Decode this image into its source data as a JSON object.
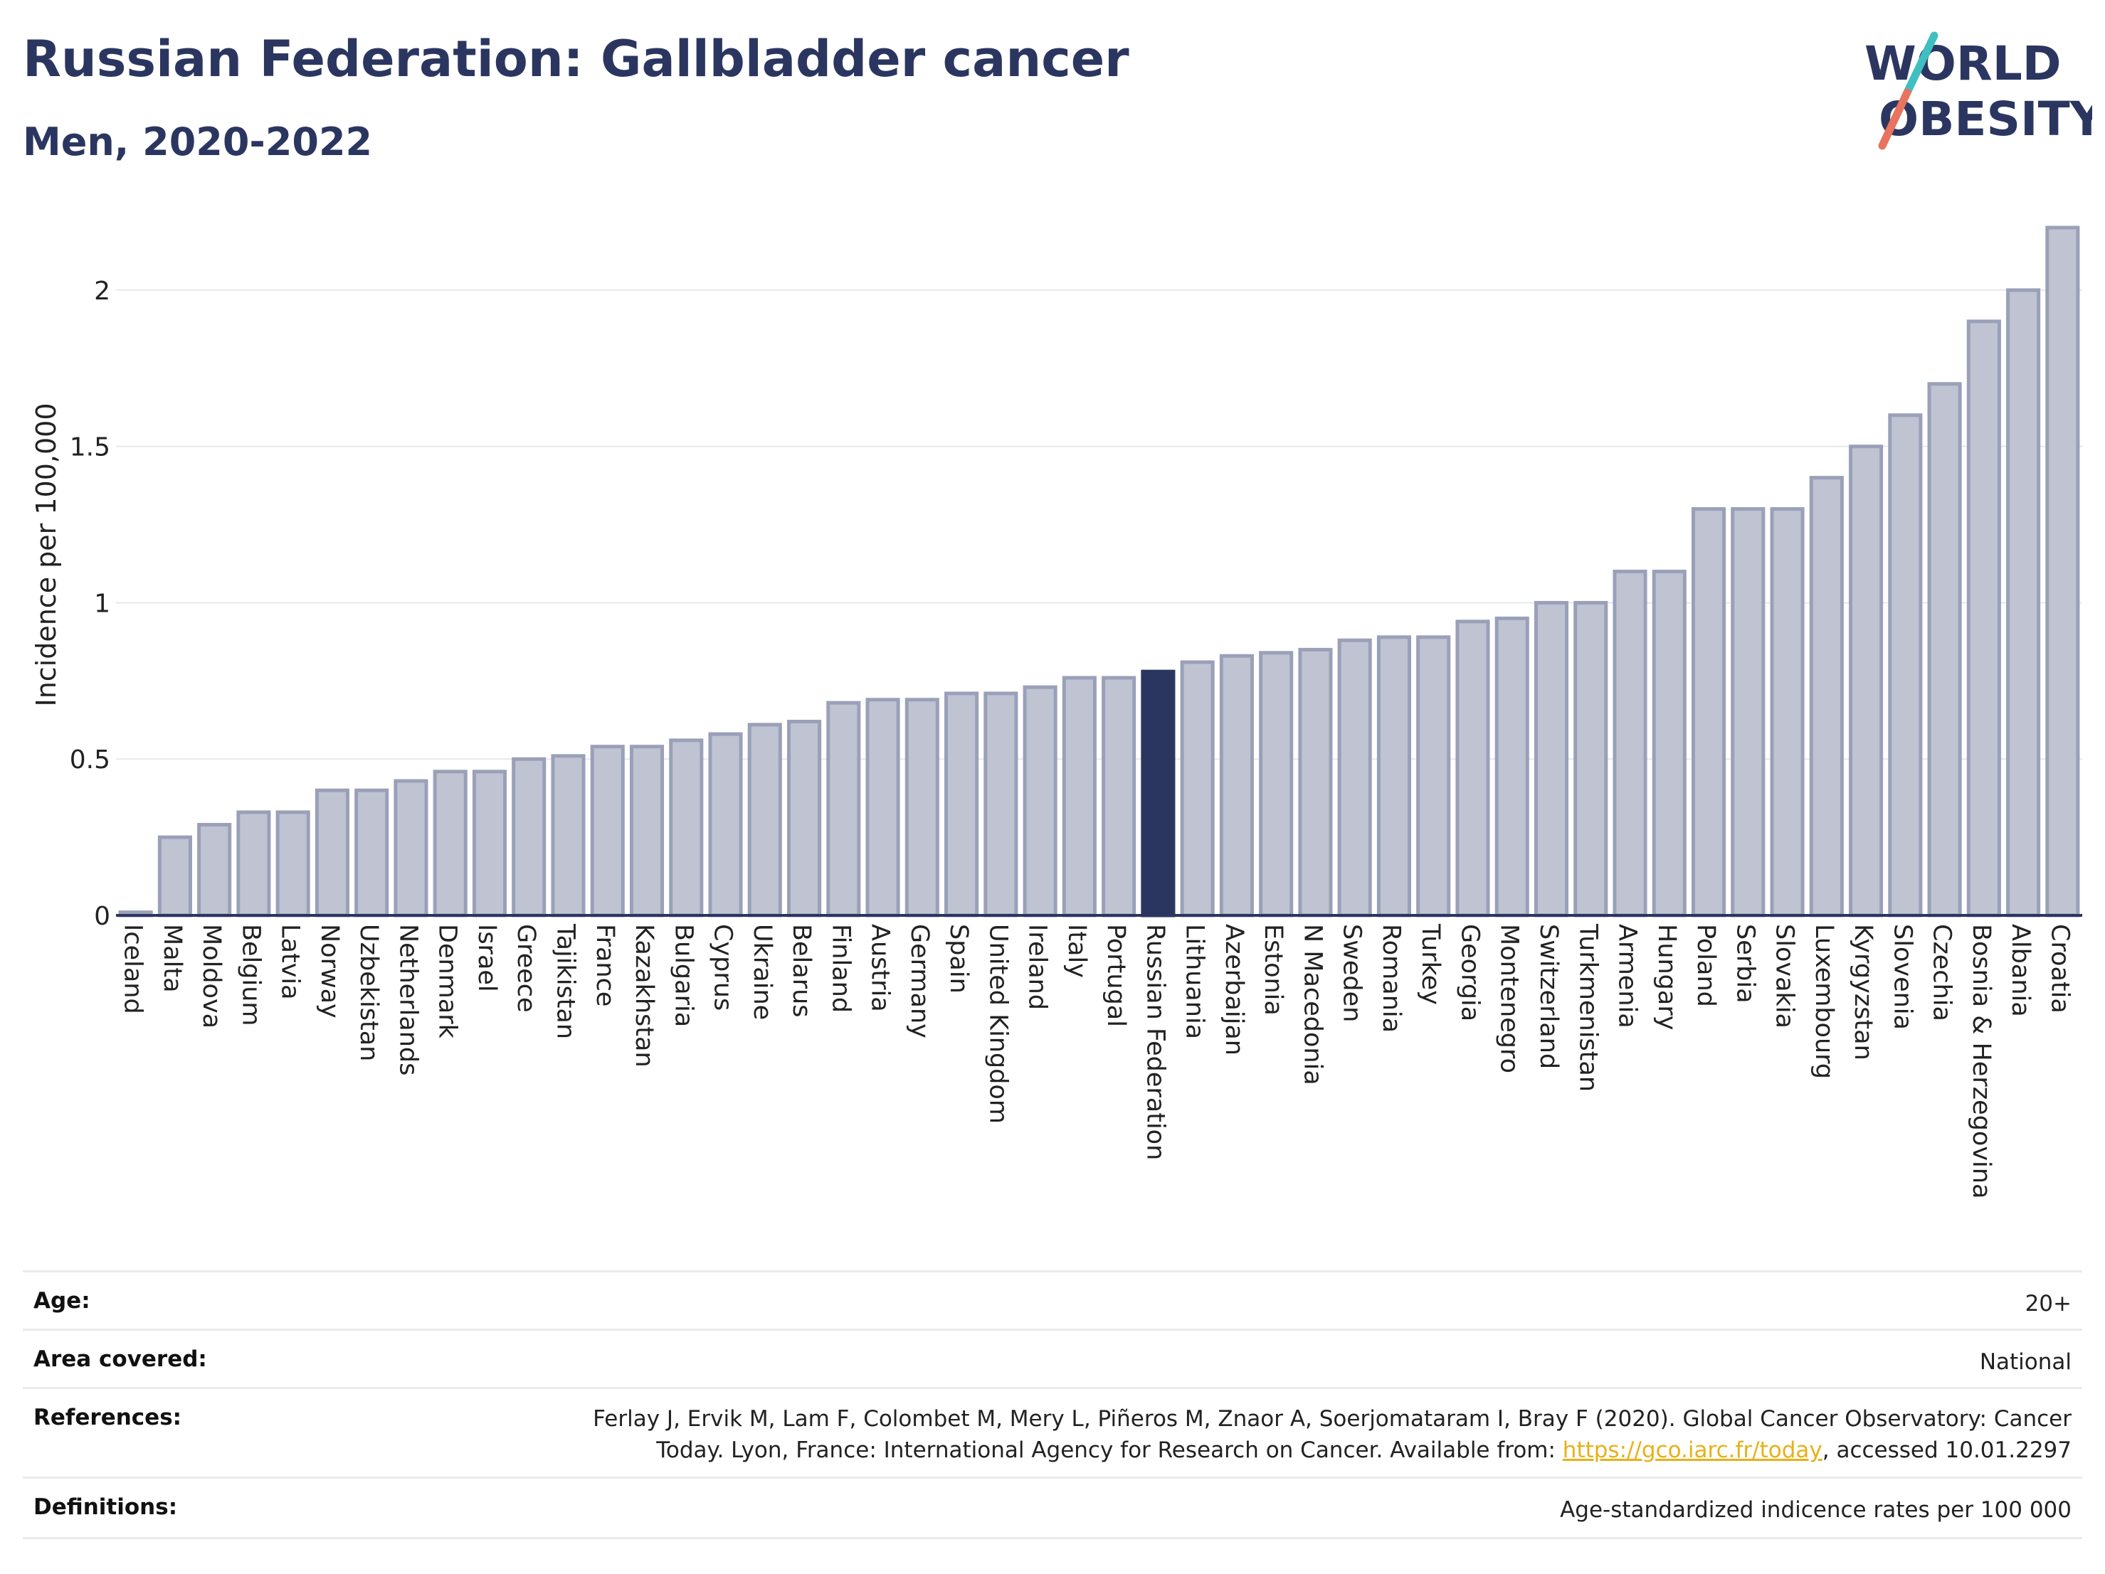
{
  "title": "Russian Federation: Gallbladder cancer",
  "subtitle": "Men, 2020-2022",
  "logo": {
    "line1": "WORLD",
    "line2": "OBESITY",
    "icon": "world-obesity-slash-logo",
    "colors": {
      "text": "#2b3660",
      "slash_top": "#3fbfc0",
      "slash_bottom": "#e8735f"
    }
  },
  "chart_data": {
    "type": "bar",
    "ylabel": "Incidence per 100,000",
    "xlabel": "",
    "ylim": [
      0,
      2.2
    ],
    "yticks": [
      0,
      0.5,
      1,
      1.5,
      2
    ],
    "ytick_labels": [
      "0",
      "0.5",
      "1",
      "1.5",
      "2"
    ],
    "grid": true,
    "highlight": "Russian Federation",
    "colors": {
      "bar": "#bfc3d2",
      "bar_edge": "#9aa0b8",
      "highlight": "#2b3660"
    },
    "categories": [
      "Iceland",
      "Malta",
      "Moldova",
      "Belgium",
      "Latvia",
      "Norway",
      "Uzbekistan",
      "Netherlands",
      "Denmark",
      "Israel",
      "Greece",
      "Tajikistan",
      "France",
      "Kazakhstan",
      "Bulgaria",
      "Cyprus",
      "Ukraine",
      "Belarus",
      "Finland",
      "Austria",
      "Germany",
      "Spain",
      "United Kingdom",
      "Ireland",
      "Italy",
      "Portugal",
      "Russian Federation",
      "Lithuania",
      "Azerbaijan",
      "Estonia",
      "N Macedonia",
      "Sweden",
      "Romania",
      "Turkey",
      "Georgia",
      "Montenegro",
      "Switzerland",
      "Turkmenistan",
      "Armenia",
      "Hungary",
      "Poland",
      "Serbia",
      "Slovakia",
      "Luxembourg",
      "Kyrgyzstan",
      "Slovenia",
      "Czechia",
      "Bosnia & Herzegovina",
      "Albania",
      "Croatia"
    ],
    "values": [
      0.01,
      0.25,
      0.29,
      0.33,
      0.33,
      0.4,
      0.4,
      0.43,
      0.46,
      0.46,
      0.5,
      0.51,
      0.54,
      0.54,
      0.56,
      0.58,
      0.61,
      0.62,
      0.68,
      0.69,
      0.69,
      0.71,
      0.71,
      0.73,
      0.76,
      0.76,
      0.78,
      0.81,
      0.83,
      0.84,
      0.85,
      0.88,
      0.89,
      0.89,
      0.94,
      0.95,
      1.0,
      1.0,
      1.1,
      1.1,
      1.3,
      1.3,
      1.3,
      1.4,
      1.5,
      1.6,
      1.7,
      1.9,
      2.0,
      2.2
    ]
  },
  "meta": {
    "age_label": "Age:",
    "age_value": "20+",
    "area_label": "Area covered:",
    "area_value": "National",
    "ref_label": "References:",
    "ref_line1": "Ferlay J, Ervik M, Lam F, Colombet M, Mery L, Piñeros M, Znaor A, Soerjomataram I, Bray F (2020). Global Cancer Observatory: Cancer",
    "ref_line2_prefix": "Today. Lyon, France: International Agency for Research on Cancer. Available from: ",
    "ref_link": "https://gco.iarc.fr/today",
    "ref_line2_suffix": ", accessed 10.01.2297",
    "def_label": "Definitions:",
    "def_value": "Age-standardized indicence rates per 100 000"
  }
}
